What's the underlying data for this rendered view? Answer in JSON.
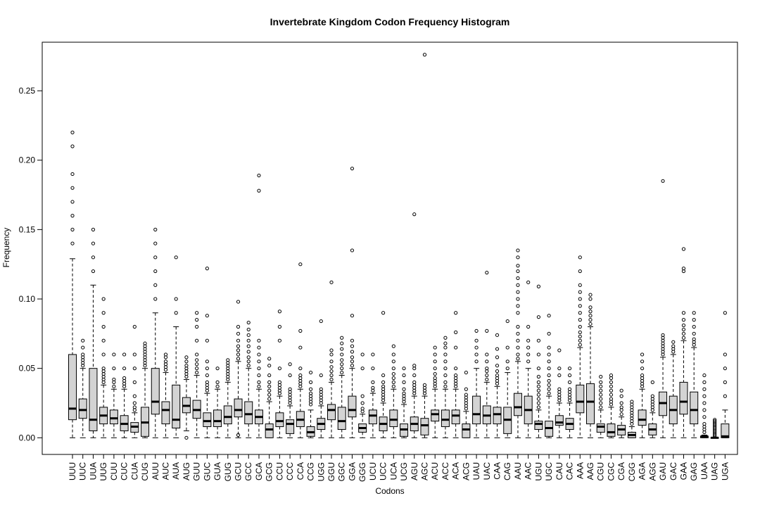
{
  "chart_data": {
    "type": "boxplot",
    "title": "Invertebrate  Kingdom Codon Frequency Histogram",
    "xlabel": "Codons",
    "ylabel": "Frequency",
    "ylim": [
      -0.012,
      0.285
    ],
    "yticks": [
      0.0,
      0.05,
      0.1,
      0.15,
      0.2,
      0.25
    ],
    "ytick_labels": [
      "0.00",
      "0.05",
      "0.10",
      "0.15",
      "0.20",
      "0.25"
    ],
    "grid": false,
    "box_color": "#d3d3d3",
    "categories": [
      "UUU",
      "UUC",
      "UUA",
      "UUG",
      "CUU",
      "CUC",
      "CUA",
      "CUG",
      "AUU",
      "AUC",
      "AUA",
      "AUG",
      "GUU",
      "GUC",
      "GUA",
      "GUG",
      "GCU",
      "GCC",
      "GCA",
      "GCG",
      "CCU",
      "CCC",
      "CCA",
      "CCG",
      "UGG",
      "GGU",
      "GGC",
      "GGA",
      "GGG",
      "UCU",
      "UCC",
      "UCA",
      "UCG",
      "AGU",
      "AGC",
      "ACU",
      "ACC",
      "ACA",
      "ACG",
      "UAU",
      "UAC",
      "CAA",
      "CAG",
      "AAU",
      "AAC",
      "UGU",
      "UGC",
      "CAU",
      "CAC",
      "AAA",
      "AAG",
      "CGU",
      "CGC",
      "CGA",
      "CGG",
      "AGA",
      "AGG",
      "GAU",
      "GAC",
      "GAA",
      "GAG",
      "UAA",
      "UAG",
      "UGA"
    ],
    "boxes": [
      {
        "min": 0.0,
        "q1": 0.013,
        "median": 0.021,
        "q3": 0.06,
        "max": 0.129,
        "outliers": [
          0.14,
          0.15,
          0.16,
          0.17,
          0.18,
          0.19,
          0.21,
          0.22
        ]
      },
      {
        "min": 0.0,
        "q1": 0.014,
        "median": 0.02,
        "q3": 0.028,
        "max": 0.05,
        "outliers": [
          0.052,
          0.054,
          0.056,
          0.058,
          0.06,
          0.065,
          0.07
        ]
      },
      {
        "min": 0.0,
        "q1": 0.005,
        "median": 0.013,
        "q3": 0.05,
        "max": 0.11,
        "outliers": [
          0.12,
          0.13,
          0.14,
          0.15
        ]
      },
      {
        "min": 0.0,
        "q1": 0.01,
        "median": 0.016,
        "q3": 0.022,
        "max": 0.038,
        "outliers": [
          0.04,
          0.042,
          0.044,
          0.046,
          0.048,
          0.05,
          0.06,
          0.07,
          0.08,
          0.09,
          0.1
        ]
      },
      {
        "min": 0.0,
        "q1": 0.01,
        "median": 0.014,
        "q3": 0.02,
        "max": 0.035,
        "outliers": [
          0.037,
          0.04,
          0.042,
          0.05,
          0.06
        ]
      },
      {
        "min": 0.0,
        "q1": 0.005,
        "median": 0.01,
        "q3": 0.016,
        "max": 0.035,
        "outliers": [
          0.037,
          0.039,
          0.041,
          0.043,
          0.05,
          0.06
        ]
      },
      {
        "min": 0.0,
        "q1": 0.004,
        "median": 0.008,
        "q3": 0.011,
        "max": 0.018,
        "outliers": [
          0.02,
          0.022,
          0.025,
          0.03,
          0.04,
          0.05,
          0.06,
          0.08
        ]
      },
      {
        "min": 0.0,
        "q1": 0.001,
        "median": 0.011,
        "q3": 0.022,
        "max": 0.05,
        "outliers": [
          0.052,
          0.054,
          0.056,
          0.058,
          0.06,
          0.062,
          0.064,
          0.066,
          0.068
        ]
      },
      {
        "min": 0.0,
        "q1": 0.017,
        "median": 0.026,
        "q3": 0.05,
        "max": 0.09,
        "outliers": [
          0.1,
          0.11,
          0.12,
          0.13,
          0.14,
          0.15
        ]
      },
      {
        "min": 0.0,
        "q1": 0.01,
        "median": 0.02,
        "q3": 0.026,
        "max": 0.047,
        "outliers": [
          0.049,
          0.051,
          0.053,
          0.055,
          0.058,
          0.06
        ]
      },
      {
        "min": 0.0,
        "q1": 0.007,
        "median": 0.013,
        "q3": 0.038,
        "max": 0.08,
        "outliers": [
          0.09,
          0.1,
          0.13
        ]
      },
      {
        "min": 0.005,
        "q1": 0.018,
        "median": 0.023,
        "q3": 0.029,
        "max": 0.042,
        "outliers": [
          0.0,
          0.044,
          0.046,
          0.048,
          0.05,
          0.052,
          0.055,
          0.058
        ]
      },
      {
        "min": 0.0,
        "q1": 0.014,
        "median": 0.02,
        "q3": 0.027,
        "max": 0.045,
        "outliers": [
          0.047,
          0.05,
          0.053,
          0.056,
          0.06,
          0.07,
          0.08,
          0.085,
          0.09
        ]
      },
      {
        "min": 0.0,
        "q1": 0.008,
        "median": 0.012,
        "q3": 0.018,
        "max": 0.032,
        "outliers": [
          0.034,
          0.036,
          0.038,
          0.04,
          0.045,
          0.05,
          0.055,
          0.07,
          0.088,
          0.122
        ]
      },
      {
        "min": 0.0,
        "q1": 0.008,
        "median": 0.012,
        "q3": 0.02,
        "max": 0.035,
        "outliers": [
          0.037,
          0.04,
          0.05
        ]
      },
      {
        "min": 0.0,
        "q1": 0.01,
        "median": 0.015,
        "q3": 0.023,
        "max": 0.04,
        "outliers": [
          0.042,
          0.044,
          0.046,
          0.048,
          0.05,
          0.052,
          0.054,
          0.056
        ]
      },
      {
        "min": 0.0,
        "q1": 0.015,
        "median": 0.02,
        "q3": 0.028,
        "max": 0.055,
        "outliers": [
          0.002,
          0.057,
          0.06,
          0.063,
          0.066,
          0.07,
          0.075,
          0.08,
          0.098
        ]
      },
      {
        "min": 0.0,
        "q1": 0.01,
        "median": 0.017,
        "q3": 0.026,
        "max": 0.05,
        "outliers": [
          0.052,
          0.055,
          0.058,
          0.062,
          0.066,
          0.07,
          0.074,
          0.078,
          0.083
        ]
      },
      {
        "min": 0.0,
        "q1": 0.01,
        "median": 0.015,
        "q3": 0.02,
        "max": 0.035,
        "outliers": [
          0.037,
          0.04,
          0.045,
          0.05,
          0.055,
          0.06,
          0.065,
          0.07,
          0.178,
          0.189
        ]
      },
      {
        "min": 0.0,
        "q1": 0.0,
        "median": 0.006,
        "q3": 0.01,
        "max": 0.026,
        "outliers": [
          0.028,
          0.031,
          0.034,
          0.037,
          0.04,
          0.045,
          0.052,
          0.057
        ]
      },
      {
        "min": 0.0,
        "q1": 0.008,
        "median": 0.012,
        "q3": 0.018,
        "max": 0.03,
        "outliers": [
          0.032,
          0.034,
          0.036,
          0.038,
          0.04,
          0.05,
          0.07,
          0.08,
          0.091
        ]
      },
      {
        "min": 0.0,
        "q1": 0.003,
        "median": 0.01,
        "q3": 0.013,
        "max": 0.023,
        "outliers": [
          0.025,
          0.027,
          0.029,
          0.031,
          0.033,
          0.035,
          0.045,
          0.053
        ]
      },
      {
        "min": 0.0,
        "q1": 0.008,
        "median": 0.013,
        "q3": 0.019,
        "max": 0.035,
        "outliers": [
          0.037,
          0.039,
          0.041,
          0.043,
          0.045,
          0.05,
          0.065,
          0.077,
          0.125
        ]
      },
      {
        "min": 0.0,
        "q1": 0.001,
        "median": 0.004,
        "q3": 0.008,
        "max": 0.02,
        "outliers": [
          0.024,
          0.026,
          0.028,
          0.03,
          0.032,
          0.035,
          0.04,
          0.047
        ]
      },
      {
        "min": 0.0,
        "q1": 0.006,
        "median": 0.01,
        "q3": 0.014,
        "max": 0.023,
        "outliers": [
          0.025,
          0.027,
          0.029,
          0.031,
          0.033,
          0.035,
          0.045,
          0.084
        ]
      },
      {
        "min": 0.0,
        "q1": 0.013,
        "median": 0.02,
        "q3": 0.024,
        "max": 0.04,
        "outliers": [
          0.042,
          0.045,
          0.048,
          0.051,
          0.055,
          0.06,
          0.063,
          0.112
        ]
      },
      {
        "min": 0.0,
        "q1": 0.006,
        "median": 0.012,
        "q3": 0.022,
        "max": 0.045,
        "outliers": [
          0.047,
          0.05,
          0.053,
          0.056,
          0.06,
          0.064,
          0.068,
          0.072
        ]
      },
      {
        "min": 0.0,
        "q1": 0.015,
        "median": 0.02,
        "q3": 0.03,
        "max": 0.05,
        "outliers": [
          0.052,
          0.055,
          0.058,
          0.062,
          0.066,
          0.07,
          0.088,
          0.135,
          0.194
        ]
      },
      {
        "min": 0.0,
        "q1": 0.004,
        "median": 0.007,
        "q3": 0.01,
        "max": 0.017,
        "outliers": [
          0.019,
          0.021,
          0.025,
          0.03,
          0.05,
          0.06
        ]
      },
      {
        "min": 0.0,
        "q1": 0.01,
        "median": 0.016,
        "q3": 0.02,
        "max": 0.032,
        "outliers": [
          0.034,
          0.036,
          0.04,
          0.05,
          0.06
        ]
      },
      {
        "min": 0.0,
        "q1": 0.005,
        "median": 0.01,
        "q3": 0.015,
        "max": 0.025,
        "outliers": [
          0.027,
          0.029,
          0.031,
          0.033,
          0.035,
          0.037,
          0.04,
          0.045,
          0.09
        ]
      },
      {
        "min": 0.0,
        "q1": 0.008,
        "median": 0.013,
        "q3": 0.02,
        "max": 0.035,
        "outliers": [
          0.037,
          0.04,
          0.043,
          0.046,
          0.05,
          0.055,
          0.06,
          0.066
        ]
      },
      {
        "min": 0.0,
        "q1": 0.001,
        "median": 0.006,
        "q3": 0.01,
        "max": 0.024,
        "outliers": [
          0.026,
          0.028,
          0.03,
          0.032,
          0.035,
          0.04,
          0.045,
          0.05
        ]
      },
      {
        "min": 0.0,
        "q1": 0.005,
        "median": 0.01,
        "q3": 0.015,
        "max": 0.03,
        "outliers": [
          0.032,
          0.034,
          0.036,
          0.038,
          0.04,
          0.045,
          0.05,
          0.052,
          0.161
        ]
      },
      {
        "min": 0.0,
        "q1": 0.002,
        "median": 0.009,
        "q3": 0.014,
        "max": 0.03,
        "outliers": [
          0.032,
          0.034,
          0.036,
          0.038,
          0.276
        ]
      },
      {
        "min": 0.0,
        "q1": 0.012,
        "median": 0.017,
        "q3": 0.02,
        "max": 0.035,
        "outliers": [
          0.037,
          0.039,
          0.041,
          0.043,
          0.046,
          0.05,
          0.055,
          0.06,
          0.065
        ]
      },
      {
        "min": 0.0,
        "q1": 0.008,
        "median": 0.013,
        "q3": 0.02,
        "max": 0.035,
        "outliers": [
          0.037,
          0.04,
          0.045,
          0.05,
          0.055,
          0.06,
          0.065,
          0.068,
          0.072
        ]
      },
      {
        "min": 0.0,
        "q1": 0.01,
        "median": 0.016,
        "q3": 0.02,
        "max": 0.035,
        "outliers": [
          0.037,
          0.039,
          0.041,
          0.043,
          0.045,
          0.05,
          0.065,
          0.076,
          0.09
        ]
      },
      {
        "min": 0.0,
        "q1": 0.0,
        "median": 0.006,
        "q3": 0.01,
        "max": 0.019,
        "outliers": [
          0.021,
          0.023,
          0.025,
          0.027,
          0.029,
          0.031,
          0.035,
          0.047
        ]
      },
      {
        "min": 0.0,
        "q1": 0.01,
        "median": 0.017,
        "q3": 0.03,
        "max": 0.05,
        "outliers": [
          0.055,
          0.06,
          0.065,
          0.07,
          0.077
        ]
      },
      {
        "min": 0.0,
        "q1": 0.01,
        "median": 0.016,
        "q3": 0.023,
        "max": 0.04,
        "outliers": [
          0.042,
          0.045,
          0.048,
          0.05,
          0.055,
          0.06,
          0.077,
          0.119
        ]
      },
      {
        "min": 0.0,
        "q1": 0.01,
        "median": 0.017,
        "q3": 0.022,
        "max": 0.037,
        "outliers": [
          0.039,
          0.041,
          0.043,
          0.045,
          0.048,
          0.052,
          0.058,
          0.064,
          0.074
        ]
      },
      {
        "min": 0.0,
        "q1": 0.003,
        "median": 0.013,
        "q3": 0.022,
        "max": 0.047,
        "outliers": [
          0.05,
          0.055,
          0.065,
          0.084
        ]
      },
      {
        "min": 0.0,
        "q1": 0.016,
        "median": 0.022,
        "q3": 0.032,
        "max": 0.055,
        "outliers": [
          0.057,
          0.06,
          0.065,
          0.07,
          0.075,
          0.08,
          0.09,
          0.095,
          0.1,
          0.105,
          0.11,
          0.115,
          0.12,
          0.124,
          0.13,
          0.135
        ]
      },
      {
        "min": 0.0,
        "q1": 0.01,
        "median": 0.02,
        "q3": 0.03,
        "max": 0.05,
        "outliers": [
          0.055,
          0.06,
          0.065,
          0.07,
          0.08,
          0.112
        ]
      },
      {
        "min": 0.0,
        "q1": 0.006,
        "median": 0.01,
        "q3": 0.012,
        "max": 0.02,
        "outliers": [
          0.022,
          0.025,
          0.028,
          0.031,
          0.034,
          0.037,
          0.04,
          0.044,
          0.05,
          0.06,
          0.07,
          0.087,
          0.109
        ]
      },
      {
        "min": 0.0,
        "q1": 0.001,
        "median": 0.007,
        "q3": 0.012,
        "max": 0.03,
        "outliers": [
          0.032,
          0.035,
          0.038,
          0.041,
          0.045,
          0.05,
          0.055,
          0.06,
          0.065,
          0.075,
          0.088
        ]
      },
      {
        "min": 0.0,
        "q1": 0.009,
        "median": 0.011,
        "q3": 0.016,
        "max": 0.025,
        "outliers": [
          0.027,
          0.029,
          0.031,
          0.033,
          0.035,
          0.045,
          0.05,
          0.063
        ]
      },
      {
        "min": 0.0,
        "q1": 0.006,
        "median": 0.01,
        "q3": 0.014,
        "max": 0.025,
        "outliers": [
          0.027,
          0.029,
          0.031,
          0.033,
          0.035,
          0.04,
          0.045,
          0.05
        ]
      },
      {
        "min": 0.0,
        "q1": 0.018,
        "median": 0.026,
        "q3": 0.038,
        "max": 0.065,
        "outliers": [
          0.067,
          0.07,
          0.073,
          0.076,
          0.08,
          0.085,
          0.09,
          0.095,
          0.1,
          0.105,
          0.11,
          0.12,
          0.13
        ]
      },
      {
        "min": 0.0,
        "q1": 0.01,
        "median": 0.026,
        "q3": 0.039,
        "max": 0.08,
        "outliers": [
          0.082,
          0.085,
          0.088,
          0.091,
          0.094,
          0.1,
          0.103
        ]
      },
      {
        "min": 0.0,
        "q1": 0.004,
        "median": 0.008,
        "q3": 0.01,
        "max": 0.02,
        "outliers": [
          0.022,
          0.025,
          0.028,
          0.031,
          0.034,
          0.037,
          0.04,
          0.044
        ]
      },
      {
        "min": 0.0,
        "q1": 0.001,
        "median": 0.004,
        "q3": 0.01,
        "max": 0.022,
        "outliers": [
          0.024,
          0.026,
          0.028,
          0.031,
          0.034,
          0.037,
          0.04,
          0.043,
          0.045
        ]
      },
      {
        "min": 0.0,
        "q1": 0.002,
        "median": 0.006,
        "q3": 0.009,
        "max": 0.015,
        "outliers": [
          0.017,
          0.02,
          0.022,
          0.025,
          0.03,
          0.034
        ]
      },
      {
        "min": 0.0,
        "q1": 0.0,
        "median": 0.002,
        "q3": 0.004,
        "max": 0.008,
        "outliers": [
          0.01,
          0.012,
          0.014,
          0.016,
          0.018,
          0.02,
          0.022,
          0.024,
          0.026
        ]
      },
      {
        "min": 0.0,
        "q1": 0.009,
        "median": 0.013,
        "q3": 0.02,
        "max": 0.035,
        "outliers": [
          0.037,
          0.039,
          0.041,
          0.043,
          0.045,
          0.05,
          0.055,
          0.06
        ]
      },
      {
        "min": 0.0,
        "q1": 0.002,
        "median": 0.006,
        "q3": 0.01,
        "max": 0.018,
        "outliers": [
          0.02,
          0.022,
          0.024,
          0.026,
          0.028,
          0.03,
          0.04
        ]
      },
      {
        "min": 0.0,
        "q1": 0.016,
        "median": 0.025,
        "q3": 0.033,
        "max": 0.058,
        "outliers": [
          0.06,
          0.062,
          0.064,
          0.066,
          0.068,
          0.07,
          0.072,
          0.074,
          0.185
        ]
      },
      {
        "min": 0.0,
        "q1": 0.01,
        "median": 0.02,
        "q3": 0.03,
        "max": 0.06,
        "outliers": [
          0.062,
          0.064,
          0.066,
          0.069
        ]
      },
      {
        "min": 0.0,
        "q1": 0.017,
        "median": 0.026,
        "q3": 0.04,
        "max": 0.07,
        "outliers": [
          0.072,
          0.075,
          0.078,
          0.081,
          0.085,
          0.09,
          0.12,
          0.122,
          0.136
        ]
      },
      {
        "min": 0.0,
        "q1": 0.01,
        "median": 0.02,
        "q3": 0.033,
        "max": 0.065,
        "outliers": [
          0.067,
          0.069,
          0.071,
          0.075,
          0.08,
          0.085,
          0.09
        ]
      },
      {
        "min": 0.0,
        "q1": 0.0,
        "median": 0.001,
        "q3": 0.001,
        "max": 0.002,
        "outliers": [
          0.004,
          0.006,
          0.008,
          0.01,
          0.015,
          0.02,
          0.025,
          0.03,
          0.035,
          0.04,
          0.045
        ]
      },
      {
        "min": 0.0,
        "q1": 0.0,
        "median": 0.0,
        "q3": 0.0,
        "max": 0.0,
        "outliers": [
          0.001,
          0.002,
          0.003,
          0.004,
          0.005,
          0.006,
          0.007,
          0.008,
          0.009,
          0.01,
          0.011,
          0.012,
          0.013
        ]
      },
      {
        "min": 0.0,
        "q1": 0.0,
        "median": 0.001,
        "q3": 0.01,
        "max": 0.02,
        "outliers": [
          0.03,
          0.04,
          0.05,
          0.06,
          0.09
        ]
      }
    ]
  }
}
